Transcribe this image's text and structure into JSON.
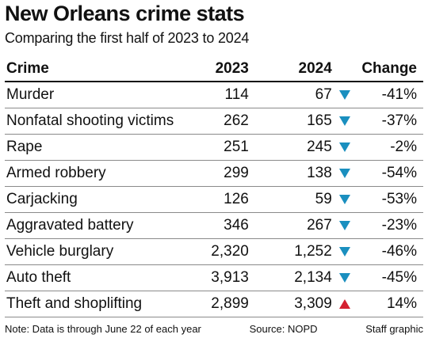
{
  "header": {
    "title": "New Orleans crime stats",
    "subtitle": "Comparing the first half of 2023 to 2024"
  },
  "chart_data": {
    "type": "table",
    "title": "New Orleans crime stats",
    "subtitle": "Comparing the first half of 2023 to 2024",
    "columns": [
      "Crime",
      "2023",
      "2024",
      "Change"
    ],
    "rows": [
      {
        "crime": "Murder",
        "y2023": "114",
        "y2024": "67",
        "change": "-41%",
        "direction": "down"
      },
      {
        "crime": "Nonfatal shooting victims",
        "y2023": "262",
        "y2024": "165",
        "change": "-37%",
        "direction": "down"
      },
      {
        "crime": "Rape",
        "y2023": "251",
        "y2024": "245",
        "change": "-2%",
        "direction": "down"
      },
      {
        "crime": "Armed robbery",
        "y2023": "299",
        "y2024": "138",
        "change": "-54%",
        "direction": "down"
      },
      {
        "crime": "Carjacking",
        "y2023": "126",
        "y2024": "59",
        "change": "-53%",
        "direction": "down"
      },
      {
        "crime": "Aggravated battery",
        "y2023": "346",
        "y2024": "267",
        "change": "-23%",
        "direction": "down"
      },
      {
        "crime": "Vehicle burglary",
        "y2023": "2,320",
        "y2024": "1,252",
        "change": "-46%",
        "direction": "down"
      },
      {
        "crime": "Auto theft",
        "y2023": "3,913",
        "y2024": "2,134",
        "change": "-45%",
        "direction": "down"
      },
      {
        "crime": "Theft and shoplifting",
        "y2023": "2,899",
        "y2024": "3,309",
        "change": "14%",
        "direction": "up"
      }
    ],
    "colors": {
      "down": "#1a8fbf",
      "up": "#d42030"
    }
  },
  "footer": {
    "note": "Note: Data is through June 22 of each year",
    "source": "Source: NOPD",
    "credit": "Staff graphic"
  }
}
